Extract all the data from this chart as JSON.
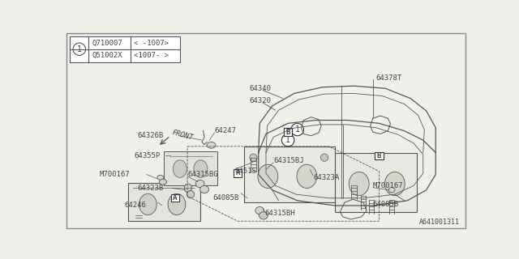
{
  "bg_color": "#f0f0eb",
  "line_color": "#555555",
  "text_color": "#444444",
  "footer": "A641001311",
  "table_rows": [
    [
      "Q710007",
      "< -1007>"
    ],
    [
      "Q51002X",
      "<1007- >"
    ]
  ]
}
